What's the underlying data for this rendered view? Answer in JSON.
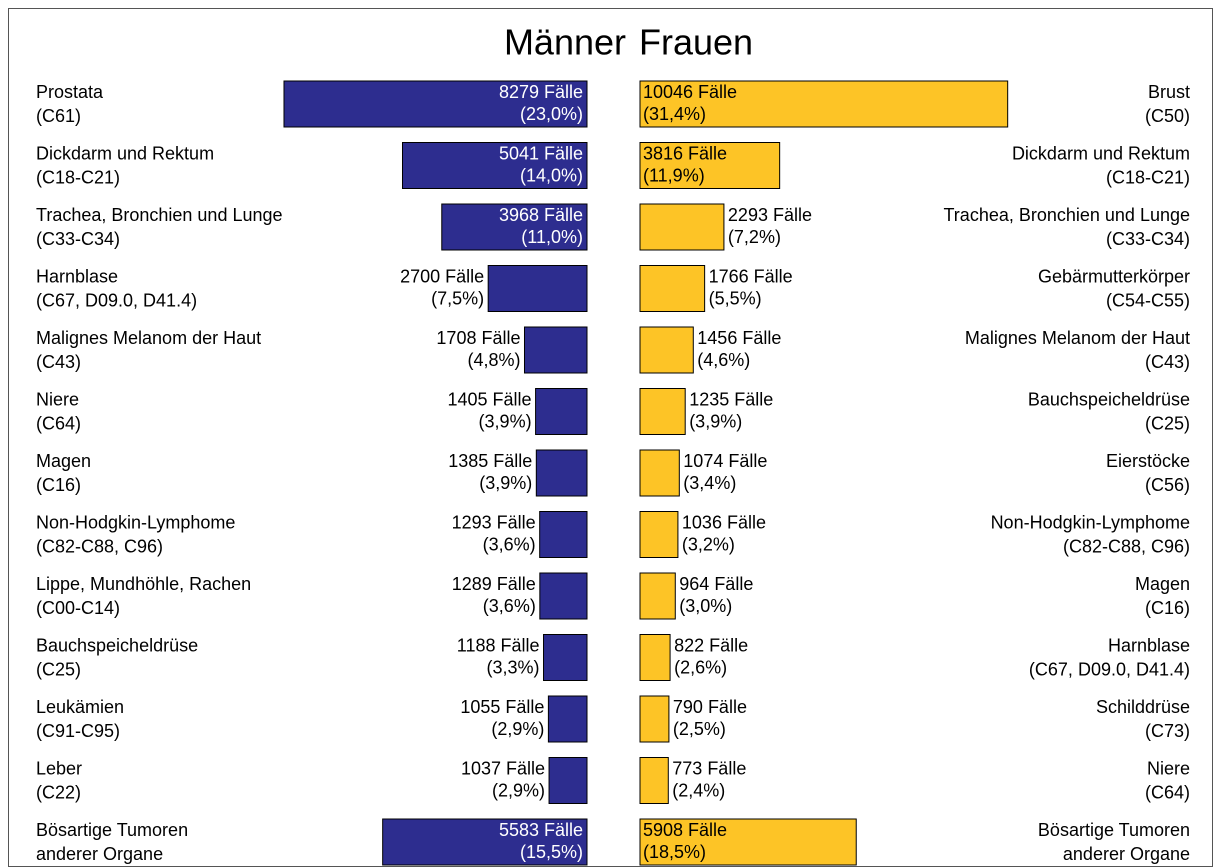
{
  "chart_data": {
    "type": "butterfly_bar",
    "series": [
      {
        "name": "Männer",
        "color": "#2d2d8f",
        "categories": [
          [
            "Prostata",
            "(C61)"
          ],
          [
            "Dickdarm und Rektum",
            "(C18-C21)"
          ],
          [
            "Trachea, Bronchien und Lunge",
            "(C33-C34)"
          ],
          [
            "Harnblase",
            "(C67, D09.0, D41.4)"
          ],
          [
            "Malignes Melanom der Haut",
            "(C43)"
          ],
          [
            "Niere",
            "(C64)"
          ],
          [
            "Magen",
            "(C16)"
          ],
          [
            "Non-Hodgkin-Lymphome",
            "(C82-C88, C96)"
          ],
          [
            "Lippe, Mundhöhle, Rachen",
            "(C00-C14)"
          ],
          [
            "Bauchspeicheldrüse",
            "(C25)"
          ],
          [
            "Leukämien",
            "(C91-C95)"
          ],
          [
            "Leber",
            "(C22)"
          ],
          [
            "Bösartige Tumoren",
            "anderer Organe"
          ]
        ],
        "values": [
          8279,
          5041,
          3968,
          2700,
          1708,
          1405,
          1385,
          1293,
          1289,
          1188,
          1055,
          1037,
          5583
        ],
        "value_labels": [
          "8279 Fälle",
          "5041 Fälle",
          "3968 Fälle",
          "2700 Fälle",
          "1708 Fälle",
          "1405 Fälle",
          "1385 Fälle",
          "1293 Fälle",
          "1289 Fälle",
          "1188 Fälle",
          "1055 Fälle",
          "1037 Fälle",
          "5583 Fälle"
        ],
        "share_labels": [
          "(23,0%)",
          "(14,0%)",
          "(11,0%)",
          "(7,5%)",
          "(4,8%)",
          "(3,9%)",
          "(3,9%)",
          "(3,6%)",
          "(3,6%)",
          "(3,3%)",
          "(2,9%)",
          "(2,9%)",
          "(15,5%)"
        ]
      },
      {
        "name": "Frauen",
        "color": "#fdc426",
        "categories": [
          [
            "Brust",
            "(C50)"
          ],
          [
            "Dickdarm und Rektum",
            "(C18-C21)"
          ],
          [
            "Trachea, Bronchien und Lunge",
            "(C33-C34)"
          ],
          [
            "Gebärmutterkörper",
            "(C54-C55)"
          ],
          [
            "Malignes Melanom der Haut",
            "(C43)"
          ],
          [
            "Bauchspeicheldrüse",
            "(C25)"
          ],
          [
            "Eierstöcke",
            "(C56)"
          ],
          [
            "Non-Hodgkin-Lymphome",
            "(C82-C88, C96)"
          ],
          [
            "Magen",
            "(C16)"
          ],
          [
            "Harnblase",
            "(C67, D09.0, D41.4)"
          ],
          [
            "Schilddrüse",
            "(C73)"
          ],
          [
            "Niere",
            "(C64)"
          ],
          [
            "Bösartige Tumoren",
            "anderer Organe"
          ]
        ],
        "values": [
          10046,
          3816,
          2293,
          1766,
          1456,
          1235,
          1074,
          1036,
          964,
          822,
          790,
          773,
          5908
        ],
        "value_labels": [
          "10046 Fälle",
          "3816 Fälle",
          "2293 Fälle",
          "1766 Fälle",
          "1456 Fälle",
          "1235 Fälle",
          "1074 Fälle",
          "1036 Fälle",
          "964 Fälle",
          "822 Fälle",
          "790 Fälle",
          "773 Fälle",
          "5908 Fälle"
        ],
        "share_labels": [
          "(31,4%)",
          "(11,9%)",
          "(7,2%)",
          "(5,5%)",
          "(4,6%)",
          "(3,9%)",
          "(3,4%)",
          "(3,2%)",
          "(3,0%)",
          "(2,6%)",
          "(2,5%)",
          "(2,4%)",
          "(18,5%)"
        ]
      }
    ]
  }
}
